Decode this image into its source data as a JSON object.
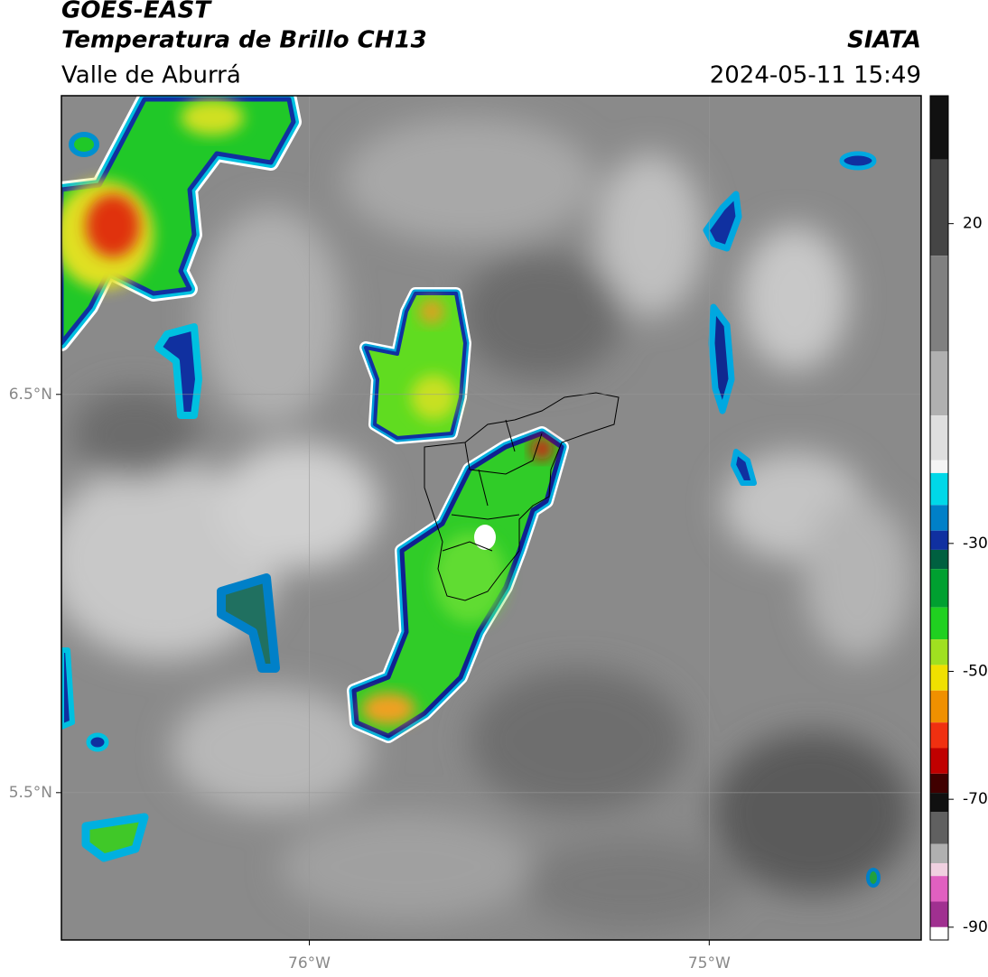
{
  "header": {
    "title": "GOES-EAST",
    "subtitle": "Temperatura de Brillo CH13",
    "region": "Valle de Aburrá",
    "source": "SIATA",
    "datetime": "2024-05-11 15:49"
  },
  "map": {
    "xlim": [
      -76.62,
      -74.47
    ],
    "ylim": [
      5.13,
      7.25
    ],
    "xticks": [
      {
        "value": -76,
        "label": "76°W"
      },
      {
        "value": -75,
        "label": "75°W"
      }
    ],
    "yticks": [
      {
        "value": 6.5,
        "label": "6.5°N"
      },
      {
        "value": 5.5,
        "label": "5.5°N"
      }
    ],
    "grid": true
  },
  "colorbar": {
    "lim": [
      -92,
      40
    ],
    "ticks": [
      20,
      -30,
      -50,
      -70,
      -90
    ],
    "stops": [
      {
        "value": 40,
        "color": "#111111"
      },
      {
        "value": 30,
        "color": "#454545"
      },
      {
        "value": 15,
        "color": "#808080"
      },
      {
        "value": 0,
        "color": "#b0b0b0"
      },
      {
        "value": -10,
        "color": "#dedede"
      },
      {
        "value": -17,
        "color": "#f4f4f4"
      },
      {
        "value": -19,
        "color": "#00d8e8"
      },
      {
        "value": -24,
        "color": "#0080c8"
      },
      {
        "value": -28,
        "color": "#1030a0"
      },
      {
        "value": -31,
        "color": "#006040"
      },
      {
        "value": -34,
        "color": "#00a030"
      },
      {
        "value": -40,
        "color": "#20d020"
      },
      {
        "value": -45,
        "color": "#a0e020"
      },
      {
        "value": -49,
        "color": "#f0e000"
      },
      {
        "value": -53,
        "color": "#f09000"
      },
      {
        "value": -58,
        "color": "#f03010"
      },
      {
        "value": -62,
        "color": "#c00000"
      },
      {
        "value": -66,
        "color": "#400000"
      },
      {
        "value": -69,
        "color": "#101010"
      },
      {
        "value": -72,
        "color": "#606060"
      },
      {
        "value": -77,
        "color": "#b0b0b0"
      },
      {
        "value": -80,
        "color": "#f0d0e0"
      },
      {
        "value": -82,
        "color": "#e060c0"
      },
      {
        "value": -86,
        "color": "#a03090"
      },
      {
        "value": -90,
        "color": "#ffffff"
      }
    ]
  }
}
